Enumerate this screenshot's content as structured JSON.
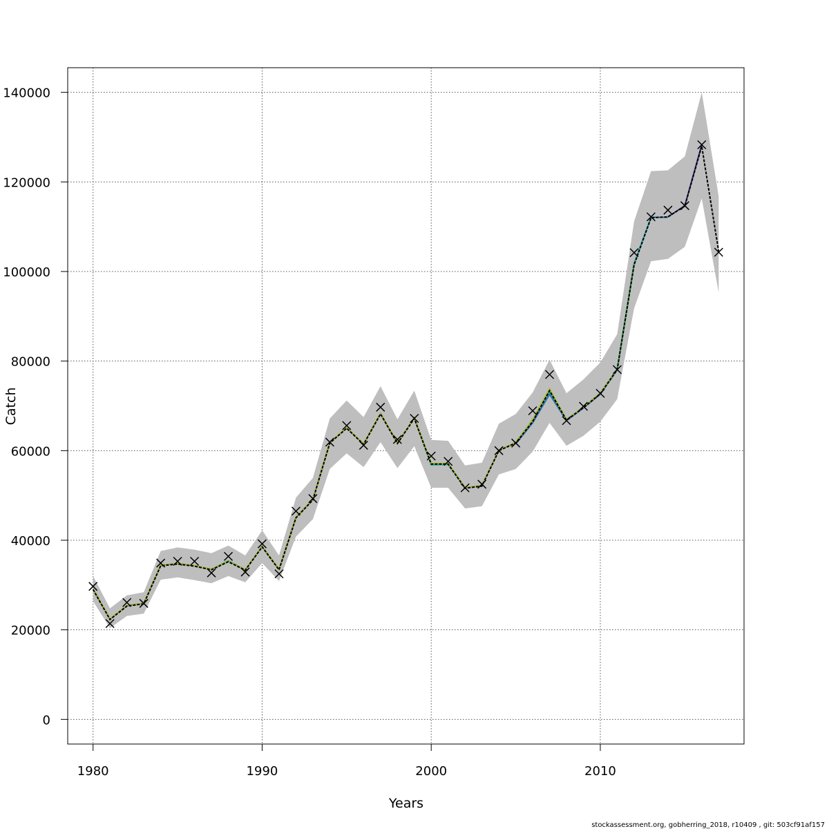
{
  "chart_data": {
    "type": "line",
    "title": "",
    "xlabel": "Years",
    "ylabel": "Catch",
    "xlim": [
      1978.5,
      2018.5
    ],
    "ylim": [
      -5500,
      145500
    ],
    "x_ticks": [
      1980,
      1990,
      2000,
      2010
    ],
    "y_ticks": [
      0,
      20000,
      40000,
      60000,
      80000,
      100000,
      120000,
      140000
    ],
    "x_tick_labels": [
      "1980",
      "1990",
      "2000",
      "2010"
    ],
    "y_tick_labels": [
      "0",
      "20000",
      "40000",
      "60000",
      "80000",
      "100000",
      "120000",
      "140000"
    ],
    "grid": true,
    "legend": "none",
    "years": [
      1980,
      1981,
      1982,
      1983,
      1984,
      1985,
      1986,
      1987,
      1988,
      1989,
      1990,
      1991,
      1992,
      1993,
      1994,
      1995,
      1996,
      1997,
      1998,
      1999,
      2000,
      2001,
      2002,
      2003,
      2004,
      2005,
      2006,
      2007,
      2008,
      2009,
      2010,
      2011,
      2012,
      2013,
      2014,
      2015,
      2016,
      2017
    ],
    "estimate": [
      29000,
      22300,
      25300,
      25800,
      34300,
      34700,
      34200,
      33400,
      35200,
      33300,
      38500,
      33400,
      45000,
      49000,
      61700,
      65000,
      61400,
      68200,
      61600,
      67200,
      57000,
      57000,
      51600,
      52100,
      60000,
      61700,
      66500,
      73400,
      66800,
      69600,
      72700,
      78100,
      101500,
      112000,
      112200,
      114600,
      128000,
      104500
    ],
    "upper": [
      32000,
      24800,
      27700,
      28400,
      37600,
      38400,
      37900,
      37100,
      38800,
      36600,
      42200,
      36600,
      49500,
      53900,
      67200,
      71200,
      67500,
      74400,
      67000,
      73400,
      62400,
      62200,
      56700,
      57300,
      66000,
      68200,
      73000,
      80300,
      72800,
      75900,
      79700,
      86000,
      111200,
      122400,
      122600,
      125700,
      140000,
      116800
    ],
    "lower": [
      26400,
      20400,
      23100,
      23600,
      31200,
      31700,
      31100,
      30400,
      32000,
      30600,
      34900,
      30900,
      40800,
      44700,
      55900,
      59400,
      56300,
      61900,
      56100,
      61000,
      51700,
      51700,
      47100,
      47600,
      54700,
      55900,
      59800,
      66200,
      61100,
      63300,
      66500,
      71500,
      91800,
      102300,
      102800,
      105500,
      116300,
      95300
    ],
    "observed": [
      29700,
      21400,
      26100,
      25900,
      34900,
      35300,
      35300,
      32700,
      36400,
      32900,
      39200,
      32500,
      46500,
      49300,
      61900,
      65600,
      61200,
      69700,
      62500,
      67200,
      58800,
      57600,
      51700,
      52500,
      60000,
      61700,
      68900,
      77000,
      66700,
      69900,
      72800,
      78100,
      104200,
      112200,
      113700,
      114700,
      128300,
      104300
    ],
    "peels": [
      {
        "color": "#2c2a80",
        "x": [
          2014,
          2015,
          2016
        ],
        "values": [
          112200,
          114700,
          128300
        ]
      },
      {
        "color": "#2a6fb0",
        "x": [
          2005,
          2006,
          2007,
          2008,
          2009,
          2010,
          2011,
          2012,
          2013,
          2014
        ],
        "values": [
          61500,
          66200,
          72600,
          66700,
          69500,
          72600,
          78000,
          101800,
          112100,
          112100
        ]
      },
      {
        "color": "#2ab0a0",
        "x": [
          1980,
          1981,
          1982,
          1983,
          1984,
          1985,
          1986,
          1987,
          1988,
          1989,
          1990,
          1991,
          1992,
          1993,
          1994,
          1995,
          1996,
          1997,
          1998,
          1999,
          2000,
          2001,
          2002,
          2003,
          2004,
          2005,
          2006,
          2007,
          2008,
          2009,
          2010,
          2011,
          2012,
          2013
        ],
        "values": [
          29100,
          22400,
          25400,
          25900,
          34400,
          34800,
          34300,
          33500,
          35400,
          33400,
          38600,
          33500,
          45100,
          49100,
          61800,
          65100,
          61500,
          68300,
          61700,
          67300,
          56800,
          56900,
          51700,
          52200,
          60100,
          61800,
          66800,
          73200,
          66900,
          69700,
          72800,
          78200,
          101700,
          112000
        ]
      },
      {
        "color": "#3aa040",
        "x": [
          1980,
          1981,
          1982,
          1983,
          1984,
          1985,
          1986,
          1987,
          1988,
          1989,
          1990,
          1991,
          1992,
          1993,
          1994,
          1995,
          1996,
          1997,
          1998,
          1999,
          2000,
          2001,
          2002,
          2003,
          2004,
          2005,
          2006,
          2007,
          2008,
          2009,
          2010,
          2011,
          2012
        ],
        "values": [
          29100,
          22400,
          25400,
          25900,
          34400,
          34800,
          34300,
          33500,
          35300,
          33400,
          38600,
          33500,
          45100,
          49100,
          61800,
          65100,
          61500,
          68300,
          61700,
          67300,
          57100,
          57100,
          51700,
          52200,
          60100,
          61800,
          66900,
          73600,
          66900,
          69700,
          72800,
          78200,
          101700
        ]
      },
      {
        "color": "#a8b820",
        "x": [
          1980,
          1981,
          1982,
          1983,
          1984,
          1985,
          1986,
          1987,
          1988,
          1989,
          1990,
          1991,
          1992,
          1993,
          1994,
          1995,
          1996,
          1997,
          1998,
          1999,
          2000,
          2001,
          2002,
          2003,
          2004,
          2005,
          2006,
          2007,
          2008,
          2009,
          2010,
          2011
        ],
        "values": [
          29100,
          22400,
          25400,
          25900,
          34400,
          34800,
          34300,
          33500,
          35300,
          33400,
          38600,
          33500,
          45100,
          49100,
          61800,
          65100,
          61500,
          68300,
          61700,
          67300,
          57100,
          57100,
          51700,
          52200,
          60100,
          61800,
          66900,
          73800,
          66900,
          69700,
          72800,
          78200
        ]
      }
    ],
    "colors": {
      "band": "#bebebe",
      "estimate": "#000000",
      "observed_marker": "#000000"
    }
  },
  "footer": "stockassessment.org, gobherring_2018, r10409 , git: 503cf91af157"
}
